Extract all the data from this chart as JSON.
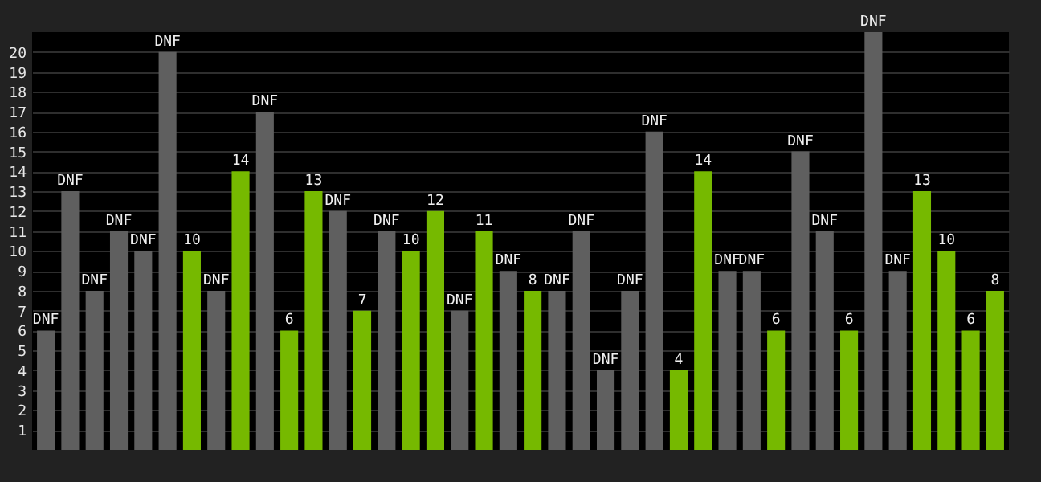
{
  "chart_data": {
    "type": "bar",
    "categories": [
      null,
      null,
      null,
      null,
      null,
      null,
      null,
      null,
      null,
      null,
      null,
      null,
      null,
      null,
      null,
      null,
      null,
      null,
      null,
      null,
      null,
      null,
      null,
      null,
      null,
      null,
      null,
      null,
      null,
      null,
      null,
      null,
      null,
      null,
      null,
      null,
      null,
      null,
      null,
      null
    ],
    "values": [
      6,
      13,
      8,
      11,
      10,
      20,
      10,
      8,
      14,
      17,
      6,
      13,
      12,
      7,
      11,
      10,
      12,
      7,
      11,
      9,
      8,
      8,
      11,
      4,
      8,
      16,
      4,
      14,
      9,
      9,
      6,
      15,
      11,
      6,
      21,
      9,
      13,
      10,
      6,
      8
    ],
    "colors": [
      "#5f5f5f",
      "#5f5f5f",
      "#5f5f5f",
      "#5f5f5f",
      "#5f5f5f",
      "#5f5f5f",
      "#76b900",
      "#5f5f5f",
      "#76b900",
      "#5f5f5f",
      "#76b900",
      "#76b900",
      "#5f5f5f",
      "#76b900",
      "#5f5f5f",
      "#76b900",
      "#76b900",
      "#5f5f5f",
      "#76b900",
      "#5f5f5f",
      "#76b900",
      "#5f5f5f",
      "#5f5f5f",
      "#5f5f5f",
      "#5f5f5f",
      "#5f5f5f",
      "#76b900",
      "#76b900",
      "#5f5f5f",
      "#5f5f5f",
      "#76b900",
      "#5f5f5f",
      "#5f5f5f",
      "#76b900",
      "#5f5f5f",
      "#5f5f5f",
      "#76b900",
      "#76b900",
      "#76b900",
      "#76b900"
    ],
    "value_labels": [
      "DNF",
      "DNF",
      "DNF",
      "DNF",
      "DNF",
      "DNF",
      "10",
      "DNF",
      "14",
      "DNF",
      "6",
      "13",
      "DNF",
      "7",
      "DNF",
      "10",
      "12",
      "DNF",
      "11",
      "DNF",
      "8",
      "DNF",
      "DNF",
      "DNF",
      "DNF",
      "DNF",
      "4",
      "14",
      "DNF",
      "DNF",
      "6",
      "DNF",
      "DNF",
      "6",
      "DNF",
      "DNF",
      "13",
      "10",
      "6",
      "8"
    ],
    "ylim": [
      0,
      21
    ],
    "yticks": [
      1,
      2,
      3,
      4,
      5,
      6,
      7,
      8,
      9,
      10,
      11,
      12,
      13,
      14,
      15,
      16,
      17,
      18,
      19,
      20
    ],
    "grid": "y",
    "tick_labels": "y"
  }
}
